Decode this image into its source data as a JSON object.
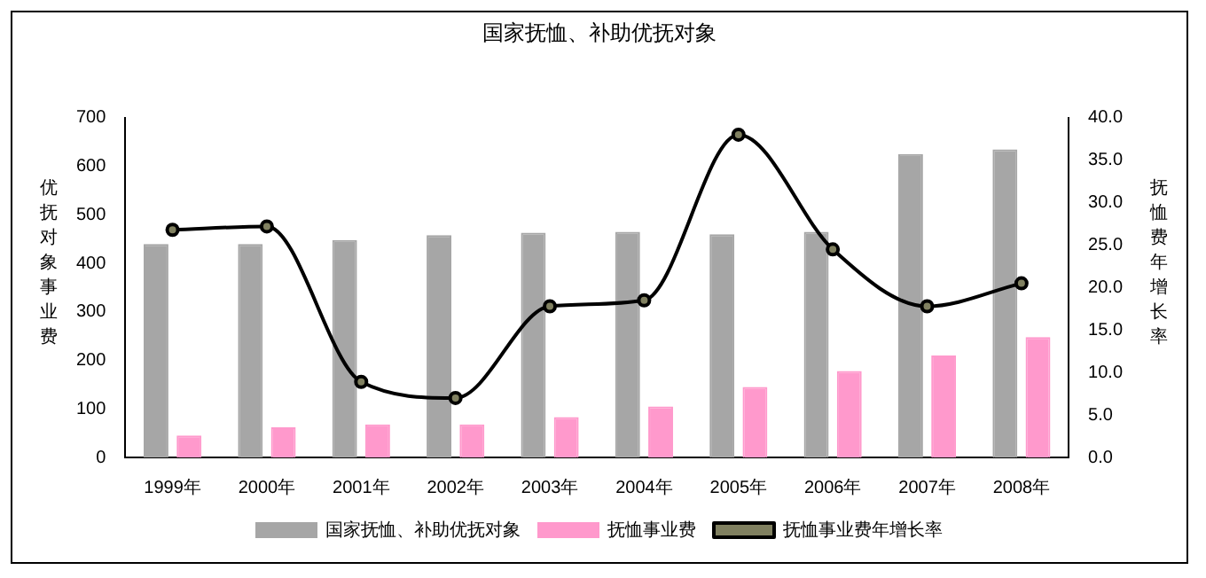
{
  "chart_data": {
    "type": "bar",
    "title": "国家抚恤、补助优抚对象",
    "ylabel": "优抚对象事业费",
    "y2label": "抚恤费年增长率",
    "categories": [
      "1999年",
      "2000年",
      "2001年",
      "2002年",
      "2003年",
      "2004年",
      "2005年",
      "2006年",
      "2007年",
      "2008年"
    ],
    "series": [
      {
        "name": "国家抚恤、补助优抚对象",
        "color": "#a6a6a6",
        "values": [
          440,
          440,
          448,
          458,
          463,
          465,
          460,
          465,
          625,
          635
        ]
      },
      {
        "name": "抚恤事业费",
        "color": "#ff99cc",
        "values": [
          45,
          62,
          68,
          68,
          83,
          105,
          145,
          178,
          210,
          248
        ]
      },
      {
        "name": "抚恤事业费年增长率",
        "type": "line",
        "axis": "y2",
        "color": "#000000",
        "marker": "circle",
        "values": [
          26.8,
          27.2,
          8.9,
          7.0,
          17.8,
          18.5,
          38.0,
          24.5,
          17.8,
          20.5
        ]
      }
    ],
    "ylim": [
      0,
      700
    ],
    "yticks": [
      0,
      100,
      200,
      300,
      400,
      500,
      600,
      700
    ],
    "y2lim": [
      0,
      40
    ],
    "y2ticks": [
      {
        "value": 0,
        "label": "0.0"
      },
      {
        "value": 5,
        "label": "5.0"
      },
      {
        "value": 10,
        "label": "10.0"
      },
      {
        "value": 15,
        "label": "15.0"
      },
      {
        "value": 20,
        "label": "20.0"
      },
      {
        "value": 25,
        "label": "25.0"
      },
      {
        "value": 30,
        "label": "30.0"
      },
      {
        "value": 35,
        "label": "35.0"
      },
      {
        "value": 40,
        "label": "40.0"
      }
    ],
    "grid": false,
    "legend": "bottom"
  }
}
